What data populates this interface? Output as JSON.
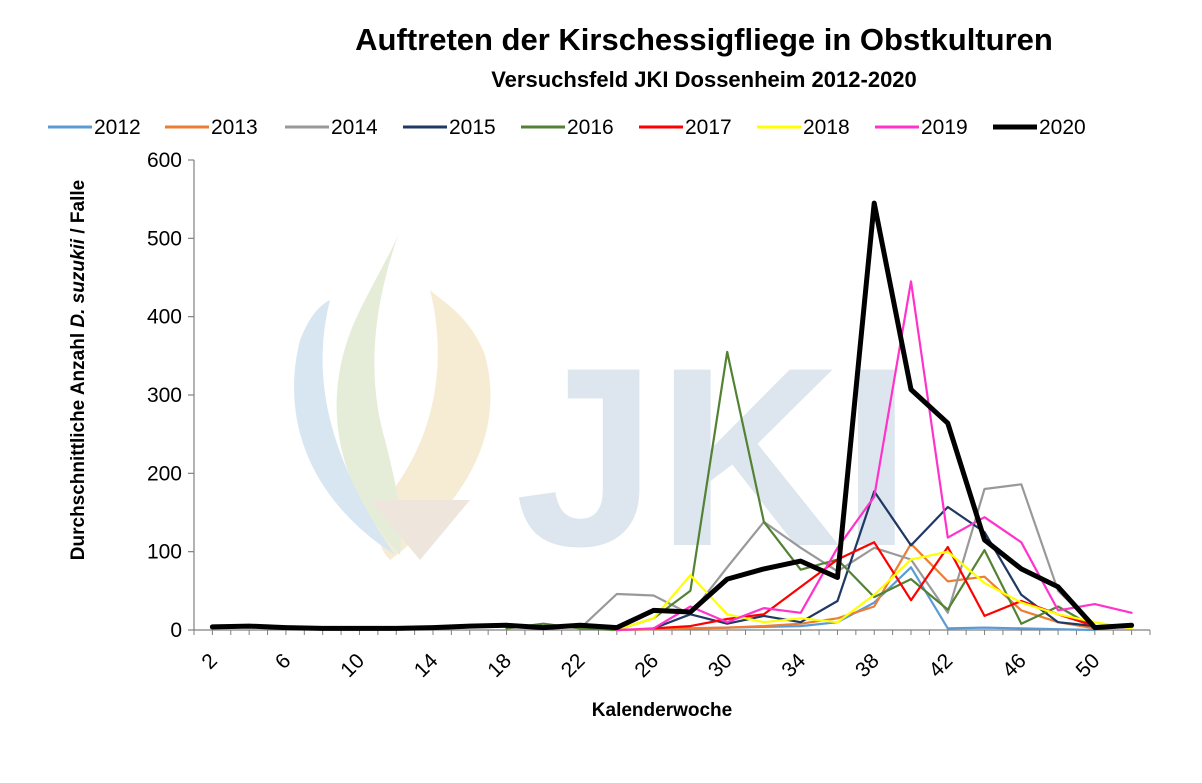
{
  "chart_data": {
    "type": "line",
    "title": "Auftreten der Kirschessigfliege in Obstkulturen",
    "subtitle": "Versuchsfeld JKI Dossenheim 2012-2020",
    "xlabel": "Kalenderwoche",
    "ylabel_prefix": "Durchschnittliche Anzahl ",
    "ylabel_italic": "D. suzukii",
    "ylabel_suffix": " / Falle",
    "watermark": "JKI",
    "xlim": [
      1,
      53
    ],
    "ylim": [
      0,
      600
    ],
    "x_ticks": [
      2,
      6,
      10,
      14,
      18,
      22,
      26,
      30,
      34,
      38,
      42,
      46,
      50
    ],
    "y_ticks": [
      0,
      100,
      200,
      300,
      400,
      500,
      600
    ],
    "legend_position": "top",
    "series": [
      {
        "name": "2012",
        "color": "#5b9bd5",
        "width": 2.2,
        "x": [
          24,
          26,
          28,
          30,
          32,
          34,
          36,
          38,
          40,
          42,
          44,
          46,
          48,
          50
        ],
        "y": [
          0,
          1,
          2,
          3,
          4,
          5,
          10,
          35,
          80,
          2,
          3,
          2,
          1,
          0
        ]
      },
      {
        "name": "2013",
        "color": "#ed7d31",
        "width": 2.2,
        "x": [
          24,
          26,
          28,
          30,
          32,
          34,
          36,
          38,
          40,
          42,
          44,
          46,
          48,
          50
        ],
        "y": [
          0,
          1,
          2,
          3,
          5,
          8,
          15,
          30,
          110,
          62,
          68,
          25,
          10,
          2
        ]
      },
      {
        "name": "2014",
        "color": "#999999",
        "width": 2.2,
        "x": [
          22,
          24,
          26,
          28,
          30,
          32,
          34,
          36,
          38,
          40,
          42,
          44,
          46,
          48,
          50
        ],
        "y": [
          2,
          46,
          44,
          20,
          80,
          138,
          105,
          75,
          105,
          90,
          22,
          180,
          186,
          50,
          5
        ]
      },
      {
        "name": "2015",
        "color": "#1f3864",
        "width": 2.2,
        "x": [
          26,
          28,
          30,
          32,
          34,
          36,
          38,
          40,
          42,
          44,
          46,
          48,
          50,
          52
        ],
        "y": [
          2,
          20,
          8,
          18,
          10,
          37,
          177,
          108,
          157,
          125,
          45,
          10,
          5,
          6
        ]
      },
      {
        "name": "2016",
        "color": "#548235",
        "width": 2.2,
        "x": [
          18,
          20,
          22,
          24,
          26,
          28,
          30,
          32,
          34,
          36,
          38,
          40,
          42,
          44,
          46,
          48,
          50
        ],
        "y": [
          2,
          8,
          2,
          0,
          15,
          50,
          355,
          138,
          77,
          90,
          42,
          65,
          26,
          102,
          8,
          30,
          3
        ]
      },
      {
        "name": "2017",
        "color": "#ff0000",
        "width": 2.2,
        "x": [
          26,
          28,
          30,
          32,
          34,
          36,
          38,
          40,
          42,
          44,
          46,
          48,
          50,
          52
        ],
        "y": [
          2,
          5,
          14,
          20,
          55,
          90,
          112,
          38,
          106,
          18,
          37,
          20,
          5,
          3
        ]
      },
      {
        "name": "2018",
        "color": "#ffff00",
        "width": 2.2,
        "x": [
          24,
          26,
          28,
          30,
          32,
          34,
          36,
          38,
          40,
          42,
          44,
          46,
          48,
          50,
          52
        ],
        "y": [
          0,
          15,
          70,
          20,
          10,
          15,
          10,
          45,
          90,
          100,
          60,
          35,
          20,
          10,
          2
        ]
      },
      {
        "name": "2019",
        "color": "#ff33cc",
        "width": 2.2,
        "x": [
          24,
          26,
          28,
          30,
          32,
          34,
          36,
          38,
          40,
          42,
          44,
          46,
          48,
          50,
          52
        ],
        "y": [
          0,
          2,
          30,
          10,
          28,
          22,
          105,
          170,
          445,
          118,
          144,
          112,
          25,
          33,
          22
        ]
      },
      {
        "name": "2020",
        "color": "#000000",
        "width": 5,
        "x": [
          2,
          4,
          6,
          8,
          10,
          12,
          14,
          16,
          18,
          20,
          22,
          24,
          26,
          28,
          30,
          32,
          34,
          36,
          38,
          40,
          42,
          44,
          46,
          48,
          50,
          52
        ],
        "y": [
          4,
          5,
          3,
          2,
          2,
          2,
          3,
          5,
          6,
          3,
          6,
          3,
          25,
          23,
          65,
          78,
          88,
          67,
          545,
          307,
          264,
          115,
          78,
          55,
          3,
          6
        ]
      }
    ]
  }
}
